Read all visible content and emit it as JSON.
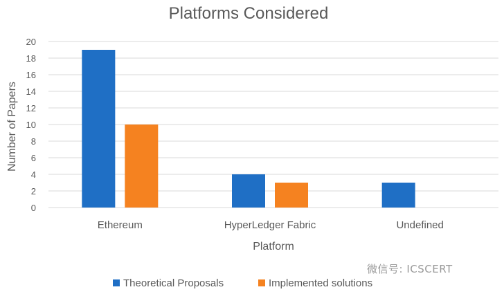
{
  "chart_data": {
    "type": "bar",
    "title": "Platforms Considered",
    "xlabel": "Platform",
    "ylabel": "Number of Papers",
    "categories": [
      "Ethereum",
      "HyperLedger Fabric",
      "Undefined"
    ],
    "series": [
      {
        "name": "Theoretical Proposals",
        "values": [
          19,
          4,
          3
        ],
        "color": "#1f6fc5"
      },
      {
        "name": "Implemented solutions",
        "values": [
          10,
          3,
          0
        ],
        "color": "#f58220"
      }
    ],
    "ylim": [
      0,
      20
    ],
    "yticks": [
      0,
      2,
      4,
      6,
      8,
      10,
      12,
      14,
      16,
      18,
      20
    ],
    "grid": true,
    "legend": "bottom"
  },
  "watermark": {
    "text": "微信号: ICSCERT"
  }
}
